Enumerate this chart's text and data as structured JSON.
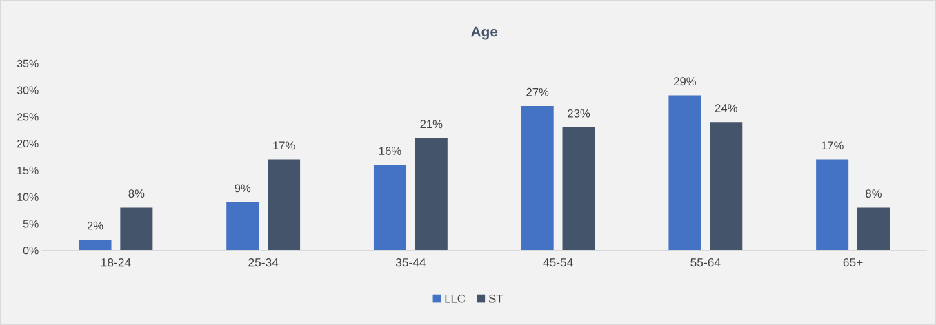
{
  "chart_data": {
    "type": "bar",
    "title": "Age",
    "categories": [
      "18-24",
      "25-34",
      "35-44",
      "45-54",
      "55-64",
      "65+"
    ],
    "series": [
      {
        "name": "LLC",
        "color": "#4472c4",
        "values": [
          2,
          9,
          16,
          27,
          29,
          17
        ],
        "value_labels": [
          "2%",
          "9%",
          "16%",
          "27%",
          "29%",
          "17%"
        ]
      },
      {
        "name": "ST",
        "color": "#44546a",
        "values": [
          8,
          17,
          21,
          23,
          24,
          8
        ],
        "value_labels": [
          "8%",
          "17%",
          "21%",
          "23%",
          "24%",
          "8%"
        ]
      }
    ],
    "ylim": [
      0,
      35
    ],
    "yticks": [
      {
        "value": 0,
        "label": "0%"
      },
      {
        "value": 5,
        "label": "5%"
      },
      {
        "value": 10,
        "label": "10%"
      },
      {
        "value": 15,
        "label": "15%"
      },
      {
        "value": 20,
        "label": "20%"
      },
      {
        "value": 25,
        "label": "25%"
      },
      {
        "value": 30,
        "label": "30%"
      },
      {
        "value": 35,
        "label": "35%"
      }
    ],
    "grid": false,
    "legend": "bottom"
  }
}
